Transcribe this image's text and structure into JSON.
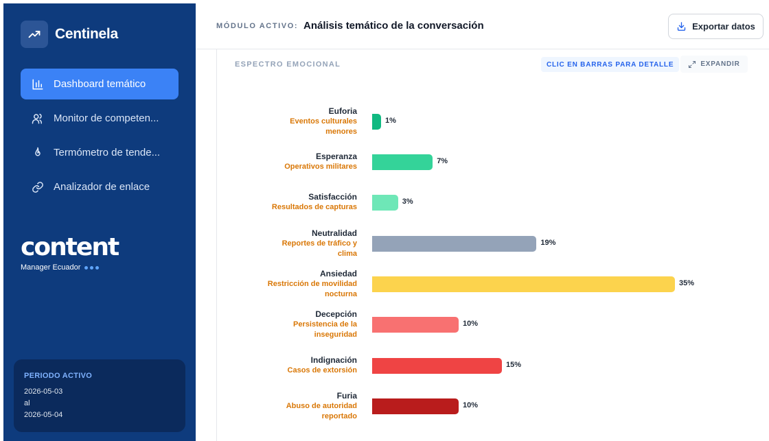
{
  "sidebar": {
    "brand": "Centinela",
    "brand_icon": "trending-up-icon",
    "nav": [
      {
        "label": "Dashboard temático",
        "icon": "bar-chart-icon",
        "active": true
      },
      {
        "label": "Monitor de competen...",
        "icon": "users-icon",
        "active": false
      },
      {
        "label": "Termómetro de tende...",
        "icon": "flame-icon",
        "active": false
      },
      {
        "label": "Analizador de enlace",
        "icon": "link-icon",
        "active": false
      }
    ],
    "logo": {
      "word": "content",
      "sub": "Manager Ecuador"
    },
    "period": {
      "title": "PERIODO ACTIVO",
      "from": "2026-05-03",
      "sep": "al",
      "to": "2026-05-04"
    }
  },
  "header": {
    "module_label": "MÓDULO ACTIVO:",
    "module_title": "Análisis temático de la conversación",
    "export_label": "Exportar datos"
  },
  "panel": {
    "section_title": "ESPECTRO EMOCIONAL",
    "hint": "CLIC EN BARRAS PARA DETALLE",
    "expand_label": "EXPANDIR"
  },
  "colors": {
    "sidebar_bg": "#0e3b7d",
    "active_nav": "#3b82f6",
    "topic_text": "#d97706"
  },
  "chart_data": {
    "type": "bar",
    "orientation": "horizontal",
    "unit": "%",
    "max": 35,
    "categories": [
      "Euforia",
      "Esperanza",
      "Satisfacción",
      "Neutralidad",
      "Ansiedad",
      "Decepción",
      "Indignación",
      "Furia"
    ],
    "topics": [
      [
        "Eventos culturales",
        "menores"
      ],
      [
        "Operativos militares"
      ],
      [
        "Resultados de capturas"
      ],
      [
        "Reportes de tráfico y",
        "clima"
      ],
      [
        "Restricción de movilidad",
        "nocturna"
      ],
      [
        "Persistencia de la",
        "inseguridad"
      ],
      [
        "Casos de extorsión"
      ],
      [
        "Abuso de autoridad",
        "reportado"
      ]
    ],
    "values": [
      1,
      7,
      3,
      19,
      35,
      10,
      15,
      10
    ],
    "labels": [
      "1%",
      "7%",
      "3%",
      "19%",
      "35%",
      "10%",
      "15%",
      "10%"
    ],
    "colors": [
      "#10b981",
      "#34d399",
      "#6ee7b7",
      "#94a3b8",
      "#fcd34d",
      "#f87171",
      "#ef4444",
      "#b91c1c"
    ]
  }
}
